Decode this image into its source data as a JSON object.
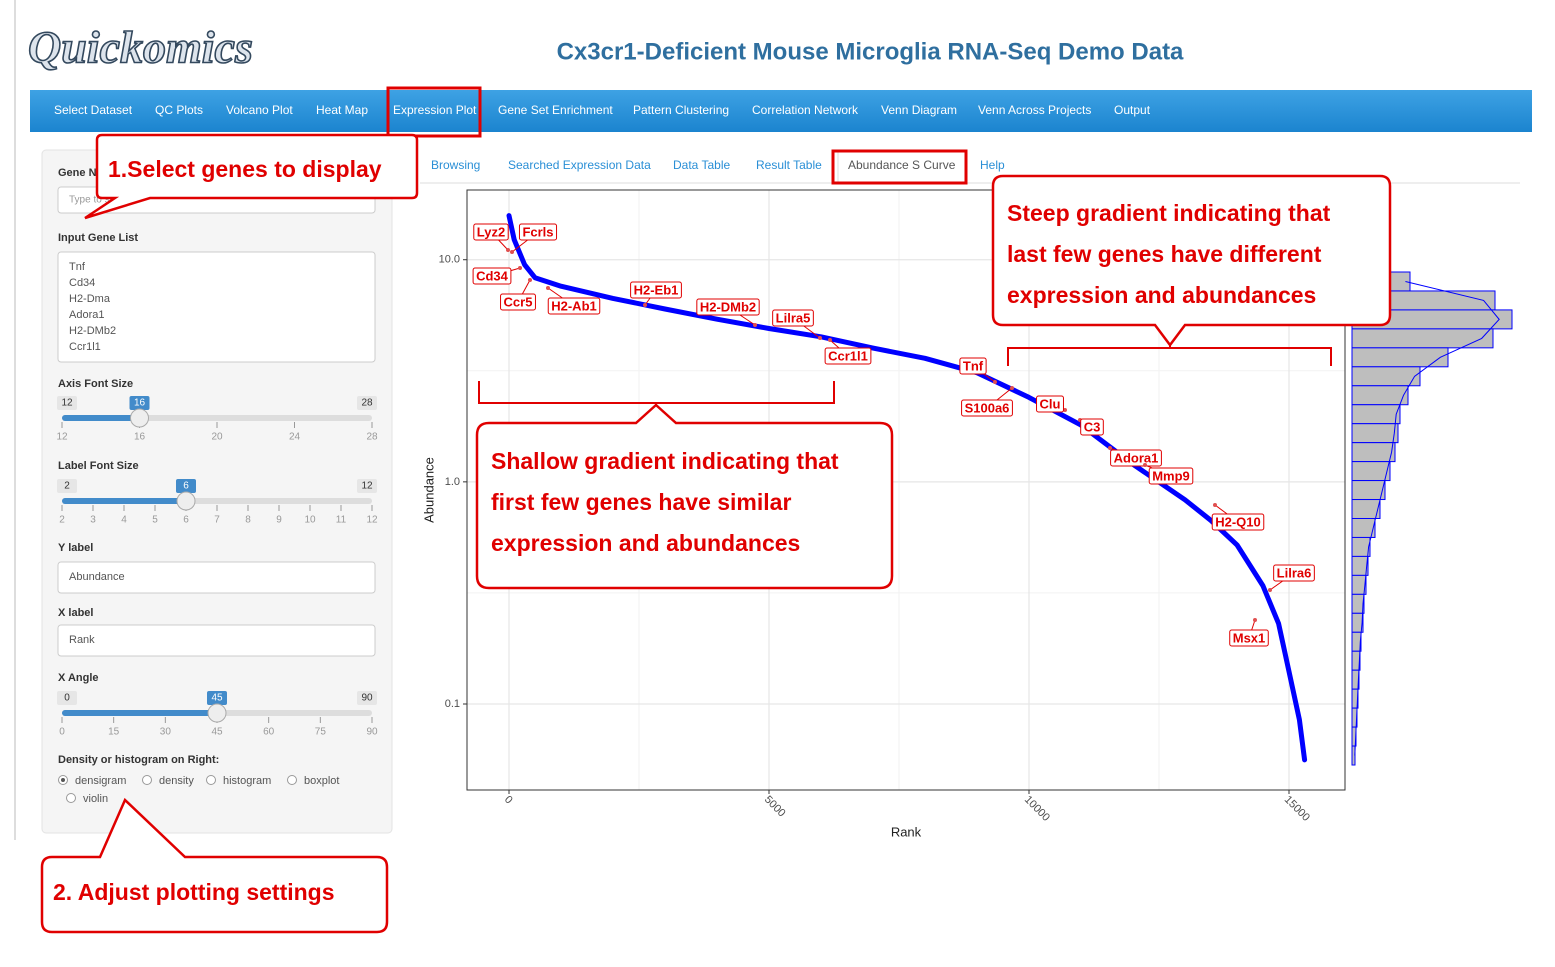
{
  "header": {
    "logo": "Quickomics",
    "title": "Cx3cr1-Deficient Mouse Microglia RNA-Seq Demo Data"
  },
  "nav": {
    "tabs": [
      "Select Dataset",
      "QC Plots",
      "Volcano Plot",
      "Heat Map",
      "Expression Plot",
      "Gene Set Enrichment",
      "Pattern Clustering",
      "Correlation Network",
      "Venn Diagram",
      "Venn Across Projects",
      "Output"
    ],
    "active": 4
  },
  "subtabs": {
    "tabs": [
      "Browsing",
      "Searched Expression Data",
      "Data Table",
      "Result Table",
      "Abundance S Curve",
      "Help"
    ],
    "active": 4
  },
  "sidebar": {
    "gene_label": "Gene Name",
    "gene_placeholder": "Type to search",
    "gene_list_label": "Input Gene List",
    "gene_list": [
      "Tnf",
      "Cd34",
      "H2-Dma",
      "Adora1",
      "H2-DMb2",
      "Ccr1l1"
    ],
    "sliders": [
      {
        "label": "Axis Font Size",
        "value": 16,
        "ticks": [
          12,
          16,
          20,
          24,
          28
        ]
      },
      {
        "label": "Label Font Size",
        "value": 6,
        "ticks": [
          2,
          3,
          4,
          5,
          6,
          7,
          8,
          9,
          10,
          11,
          12
        ]
      },
      {
        "label": "X Angle",
        "value": 45,
        "ticks": [
          0,
          15,
          30,
          45,
          60,
          75,
          90
        ]
      }
    ],
    "y_label": {
      "label": "Y label",
      "value": "Abundance"
    },
    "x_label": {
      "label": "X label",
      "value": "Rank"
    },
    "radio": {
      "label": "Density or histogram on Right:",
      "options": [
        "densigram",
        "density",
        "histogram",
        "boxplot",
        "violin"
      ],
      "selected": 0
    }
  },
  "plot": {
    "type": "line",
    "x_label": "Rank",
    "y_label": "Abundance",
    "xlim": [
      -808,
      16077
    ],
    "ylim": [
      0.041,
      20.6
    ],
    "log_y": true,
    "xticks": [
      0,
      5000,
      10000,
      15000
    ],
    "yticks": [
      0.1,
      {
        "value": 1,
        "label": "1.0"
      },
      {
        "value": 10,
        "label": "10.0"
      }
    ],
    "color": "#0000ff",
    "x": [
      0,
      100,
      300,
      500,
      1000,
      2000,
      3000,
      4000,
      5000,
      6000,
      7000,
      8000,
      9000,
      10000,
      11000,
      12000,
      13000,
      13500,
      14000,
      14500,
      14800,
      15000,
      15200,
      15300
    ],
    "values": [
      15.8,
      12.3,
      9.5,
      8.3,
      7.6,
      6.7,
      6.0,
      5.4,
      4.9,
      4.5,
      4.0,
      3.6,
      3.1,
      2.4,
      1.8,
      1.2,
      0.83,
      0.67,
      0.52,
      0.34,
      0.23,
      0.14,
      0.085,
      0.056
    ],
    "gene_labels": [
      "Lyz2",
      "Fcrls",
      "Cd34",
      "Ccr5",
      "H2-Ab1",
      "H2-Eb1",
      "H2-DMb2",
      "Lilra5",
      "Ccr1l1",
      "Tnf",
      "S100a6",
      "Clu",
      "C3",
      "Adora1",
      "Mmp9",
      "H2-Q10",
      "Lilra6",
      "Msx1"
    ],
    "histogram": {
      "counts": [
        812,
        2002,
        2240,
        1974,
        1344,
        952,
        784,
        672,
        644,
        602,
        532,
        462,
        392,
        322,
        252,
        224,
        196,
        168,
        154,
        126,
        112,
        98,
        84,
        70,
        56,
        42
      ],
      "fill": "#bebebe"
    }
  },
  "callouts": [
    {
      "lines": [
        "1.Select genes to display"
      ]
    },
    {
      "lines": [
        "Steep gradient indicating that",
        "last few genes have different",
        "expression and abundances"
      ]
    },
    {
      "lines": [
        "Shallow gradient indicating that",
        "first few genes have similar",
        "expression and abundances"
      ]
    },
    {
      "lines": [
        "2. Adjust plotting settings"
      ]
    }
  ]
}
